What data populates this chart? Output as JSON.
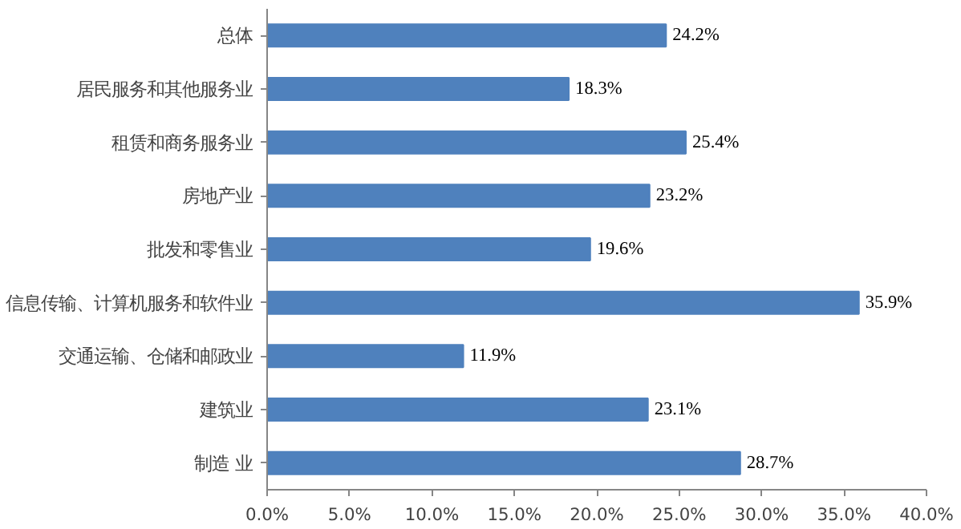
{
  "chart_data": {
    "type": "bar",
    "orientation": "horizontal",
    "categories": [
      "总体",
      "居民服务和其他服务业",
      "租赁和商务服务业",
      "房地产业",
      "批发和零售业",
      "信息传输、计算机服务和软件业",
      "交通运输、仓储和邮政业",
      "建筑业",
      "制造 业"
    ],
    "values": [
      24.2,
      18.3,
      25.4,
      23.2,
      19.6,
      35.9,
      11.9,
      23.1,
      28.7
    ],
    "value_labels": [
      "24.2%",
      "18.3%",
      "25.4%",
      "23.2%",
      "19.6%",
      "35.9%",
      "11.9%",
      "23.1%",
      "28.7%"
    ],
    "color": "#4f81bd",
    "xlim": [
      0,
      40
    ],
    "xticks": [
      {
        "value": 0,
        "label": "0.0%"
      },
      {
        "value": 5,
        "label": "5.0%"
      },
      {
        "value": 10,
        "label": "10.0%"
      },
      {
        "value": 15,
        "label": "15.0%"
      },
      {
        "value": 20,
        "label": "20.0%"
      },
      {
        "value": 25,
        "label": "25.0%"
      },
      {
        "value": 30,
        "label": "30.0%"
      },
      {
        "value": 35,
        "label": "35.0%"
      },
      {
        "value": 40,
        "label": "40.0%"
      }
    ],
    "grid": false
  }
}
